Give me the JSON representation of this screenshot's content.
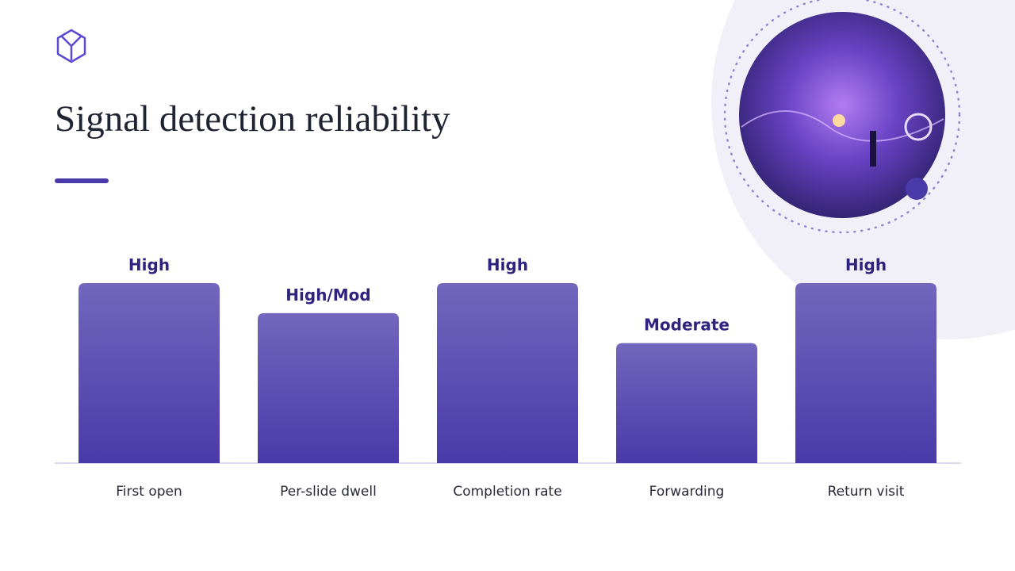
{
  "chart_data": {
    "type": "bar",
    "title": "Signal detection reliability",
    "categories": [
      "First open",
      "Per-slide dwell",
      "Completion rate",
      "Forwarding",
      "Return visit"
    ],
    "values": [
      3,
      2.5,
      3,
      2,
      3
    ],
    "value_labels": [
      "High",
      "High/Mod",
      "High",
      "Moderate",
      "High"
    ],
    "color": "#5446ad"
  }
}
